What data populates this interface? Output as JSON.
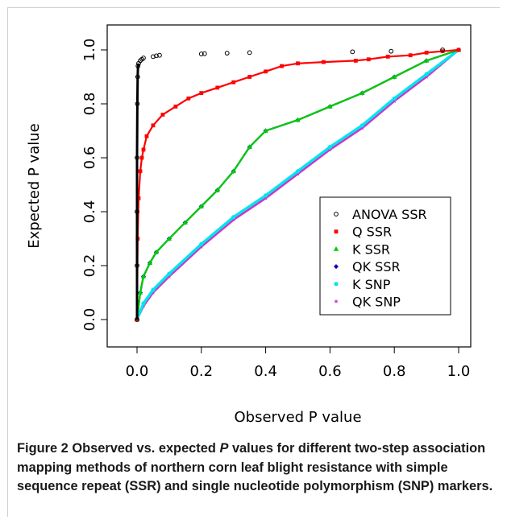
{
  "chart_data": {
    "type": "scatter",
    "xlabel": "Observed P value",
    "ylabel": "Expected P value",
    "xlim": [
      0.0,
      1.0
    ],
    "ylim": [
      0.0,
      1.0
    ],
    "x_ticks": [
      "0.0",
      "0.2",
      "0.4",
      "0.6",
      "0.8",
      "1.0"
    ],
    "y_ticks": [
      "0.0",
      "0.2",
      "0.4",
      "0.6",
      "0.8",
      "1.0"
    ],
    "grid": false,
    "legend_position": "bottom-right",
    "series": [
      {
        "name": "ANOVA SSR",
        "marker": "circle-open",
        "color": "#000000",
        "points": [
          [
            0.0,
            0.0
          ],
          [
            0.0,
            0.2
          ],
          [
            0.0,
            0.4
          ],
          [
            0.0,
            0.6
          ],
          [
            0.001,
            0.8
          ],
          [
            0.002,
            0.9
          ],
          [
            0.003,
            0.94
          ],
          [
            0.005,
            0.95
          ],
          [
            0.01,
            0.96
          ],
          [
            0.015,
            0.965
          ],
          [
            0.02,
            0.97
          ],
          [
            0.05,
            0.975
          ],
          [
            0.06,
            0.978
          ],
          [
            0.07,
            0.98
          ],
          [
            0.2,
            0.985
          ],
          [
            0.21,
            0.986
          ],
          [
            0.28,
            0.988
          ],
          [
            0.35,
            0.99
          ],
          [
            0.67,
            0.993
          ],
          [
            0.79,
            0.995
          ],
          [
            0.95,
            1.0
          ]
        ]
      },
      {
        "name": "Q SSR",
        "marker": "square",
        "color": "#ff0000",
        "points": [
          [
            0.0,
            0.0
          ],
          [
            0.002,
            0.3
          ],
          [
            0.005,
            0.45
          ],
          [
            0.01,
            0.55
          ],
          [
            0.015,
            0.6
          ],
          [
            0.02,
            0.63
          ],
          [
            0.03,
            0.68
          ],
          [
            0.05,
            0.72
          ],
          [
            0.08,
            0.76
          ],
          [
            0.12,
            0.79
          ],
          [
            0.16,
            0.82
          ],
          [
            0.2,
            0.84
          ],
          [
            0.25,
            0.86
          ],
          [
            0.3,
            0.88
          ],
          [
            0.35,
            0.9
          ],
          [
            0.4,
            0.92
          ],
          [
            0.45,
            0.94
          ],
          [
            0.5,
            0.95
          ],
          [
            0.58,
            0.955
          ],
          [
            0.68,
            0.96
          ],
          [
            0.72,
            0.965
          ],
          [
            0.78,
            0.975
          ],
          [
            0.85,
            0.98
          ],
          [
            0.9,
            0.99
          ],
          [
            0.95,
            0.995
          ],
          [
            1.0,
            1.0
          ]
        ]
      },
      {
        "name": "K SSR",
        "marker": "triangle",
        "color": "#00cc00",
        "points": [
          [
            0.0,
            0.0
          ],
          [
            0.01,
            0.1
          ],
          [
            0.02,
            0.16
          ],
          [
            0.04,
            0.21
          ],
          [
            0.06,
            0.25
          ],
          [
            0.1,
            0.3
          ],
          [
            0.15,
            0.36
          ],
          [
            0.2,
            0.42
          ],
          [
            0.25,
            0.48
          ],
          [
            0.3,
            0.55
          ],
          [
            0.35,
            0.64
          ],
          [
            0.4,
            0.7
          ],
          [
            0.5,
            0.74
          ],
          [
            0.6,
            0.79
          ],
          [
            0.7,
            0.84
          ],
          [
            0.8,
            0.9
          ],
          [
            0.9,
            0.96
          ],
          [
            1.0,
            1.0
          ]
        ]
      },
      {
        "name": "QK SSR",
        "marker": "diamond",
        "color": "#0000cc",
        "points": [
          [
            0.0,
            0.0
          ],
          [
            0.01,
            0.1
          ],
          [
            0.02,
            0.16
          ],
          [
            0.04,
            0.21
          ],
          [
            0.06,
            0.25
          ],
          [
            0.1,
            0.3
          ],
          [
            0.15,
            0.36
          ],
          [
            0.2,
            0.42
          ],
          [
            0.25,
            0.48
          ],
          [
            0.3,
            0.55
          ],
          [
            0.35,
            0.64
          ],
          [
            0.4,
            0.7
          ],
          [
            0.5,
            0.74
          ],
          [
            0.6,
            0.79
          ],
          [
            0.7,
            0.84
          ],
          [
            0.8,
            0.9
          ],
          [
            0.9,
            0.96
          ],
          [
            1.0,
            1.0
          ]
        ]
      },
      {
        "name": "K SNP",
        "marker": "circle",
        "color": "#00e5ee",
        "points": [
          [
            0.0,
            0.0
          ],
          [
            0.02,
            0.06
          ],
          [
            0.05,
            0.11
          ],
          [
            0.1,
            0.17
          ],
          [
            0.2,
            0.28
          ],
          [
            0.3,
            0.38
          ],
          [
            0.4,
            0.46
          ],
          [
            0.5,
            0.55
          ],
          [
            0.6,
            0.64
          ],
          [
            0.7,
            0.72
          ],
          [
            0.8,
            0.82
          ],
          [
            0.9,
            0.91
          ],
          [
            1.0,
            1.0
          ]
        ]
      },
      {
        "name": "QK SNP",
        "marker": "star",
        "color": "#cc33cc",
        "points": [
          [
            0.0,
            0.0
          ],
          [
            0.02,
            0.05
          ],
          [
            0.05,
            0.1
          ],
          [
            0.1,
            0.16
          ],
          [
            0.2,
            0.27
          ],
          [
            0.3,
            0.37
          ],
          [
            0.4,
            0.45
          ],
          [
            0.5,
            0.54
          ],
          [
            0.6,
            0.63
          ],
          [
            0.7,
            0.71
          ],
          [
            0.8,
            0.81
          ],
          [
            0.9,
            0.9
          ],
          [
            1.0,
            1.0
          ]
        ]
      }
    ]
  },
  "caption": {
    "label": "Figure 2",
    "text_before_p": " Observed vs. expected ",
    "p_italic": "P",
    "text_after_p": " values for different two-step association mapping methods of northern corn leaf blight resistance with simple sequence repeat (SSR) and single nucleotide polymorphism (SNP) markers."
  }
}
